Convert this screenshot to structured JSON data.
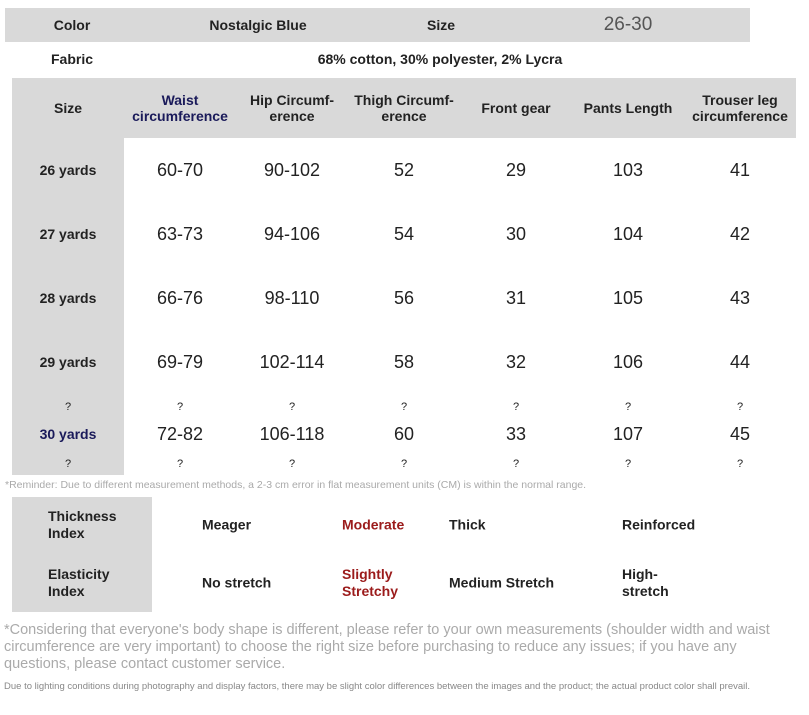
{
  "product": {
    "color_label": "Color",
    "color": "Nostalgic Blue",
    "size_label": "Size",
    "size": "26-30",
    "fabric_label": "Fabric",
    "fabric": "68% cotton, 30% polyester, 2% Lycra"
  },
  "size_table": {
    "header": [
      "Size",
      "Waist circumference",
      "Hip Circumf-erence",
      "Thigh Circumf-erence",
      "Front gear",
      "Pants Length",
      "Trouser leg circumference"
    ],
    "rows": [
      [
        "26 yards",
        "60-70",
        "90-102",
        "52",
        "29",
        "103",
        "41"
      ],
      [
        "27 yards",
        "63-73",
        "94-106",
        "54",
        "30",
        "104",
        "42"
      ],
      [
        "28 yards",
        "66-76",
        "98-110",
        "56",
        "31",
        "105",
        "43"
      ],
      [
        "29 yards",
        "69-79",
        "102-114",
        "58",
        "32",
        "106",
        "44"
      ],
      [
        "?",
        "?",
        "?",
        "?",
        "?",
        "?",
        "?"
      ],
      [
        "30 yards",
        "72-82",
        "106-118",
        "60",
        "33",
        "107",
        "45"
      ],
      [
        "?",
        "?",
        "?",
        "?",
        "?",
        "?",
        "?"
      ]
    ]
  },
  "reminder": "*Reminder: Due to different measurement methods, a 2-3 cm error in flat measurement units (CM) is within the normal range.",
  "index_table": {
    "rows": [
      [
        "Thickness Index",
        "Meager",
        "Moderate",
        "Thick",
        "Reinforced"
      ],
      [
        "Elasticity Index",
        "No stretch",
        "Slightly Stretchy",
        "Medium Stretch",
        "High-stretch"
      ]
    ]
  },
  "notes": [
    "*Considering that everyone's body shape is different, please refer to your own measurements (shoulder width and waist circumference are very important) to choose the right size before purchasing to reduce any issues; if you have any questions, please contact customer service.",
    "Due to lighting conditions during photography and display factors, there may be slight color differences between the images and the product; the actual product color shall prevail."
  ]
}
